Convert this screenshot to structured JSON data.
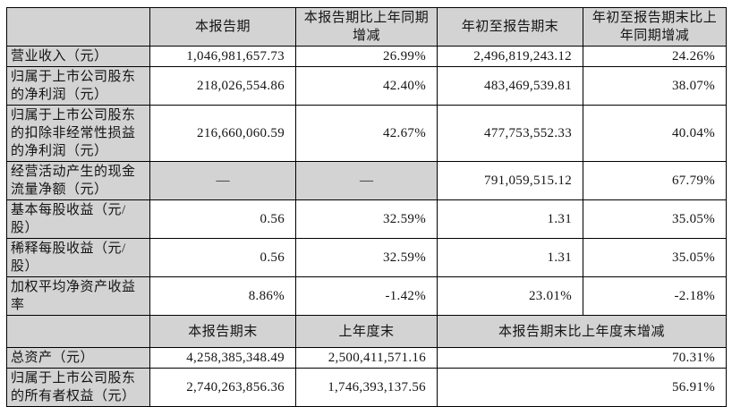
{
  "colors": {
    "cell_gray": "#d3d3d3",
    "border": "#000000",
    "text": "#141414",
    "background": "#ffffff"
  },
  "section1": {
    "headers": {
      "col1": "本报告期",
      "col2": "本报告期比上年同期增减",
      "col3": "年初至报告期末",
      "col4": "年初至报告期末比上年同期增减"
    },
    "rows": [
      {
        "label": "营业收入（元）",
        "values": [
          "1,046,981,657.73",
          "26.99%",
          "2,496,819,243.12",
          "24.26%"
        ]
      },
      {
        "label": "归属于上市公司股东的净利润（元）",
        "values": [
          "218,026,554.86",
          "42.40%",
          "483,469,539.81",
          "38.07%"
        ]
      },
      {
        "label": "归属于上市公司股东的扣除非经常性损益的净利润（元）",
        "values": [
          "216,660,060.59",
          "42.67%",
          "477,753,552.33",
          "40.04%"
        ]
      },
      {
        "label": "经营活动产生的现金流量净额（元）",
        "values": [
          "—",
          "—",
          "791,059,515.12",
          "67.79%"
        ]
      },
      {
        "label": "基本每股收益（元/股）",
        "values": [
          "0.56",
          "32.59%",
          "1.31",
          "35.05%"
        ]
      },
      {
        "label": "稀释每股收益（元/股）",
        "values": [
          "0.56",
          "32.59%",
          "1.31",
          "35.05%"
        ]
      },
      {
        "label": "加权平均净资产收益率",
        "values": [
          "8.86%",
          "-1.42%",
          "23.01%",
          "-2.18%"
        ]
      }
    ]
  },
  "section2": {
    "headers": {
      "col1": "本报告期末",
      "col2": "上年度末",
      "col3": "本报告期末比上年度末增减"
    },
    "rows": [
      {
        "label": "总资产（元）",
        "values": [
          "4,258,385,348.49",
          "2,500,411,571.16",
          "70.31%"
        ]
      },
      {
        "label": "归属于上市公司股东的所有者权益（元）",
        "values": [
          "2,740,263,856.36",
          "1,746,393,137.56",
          "56.91%"
        ]
      }
    ]
  }
}
